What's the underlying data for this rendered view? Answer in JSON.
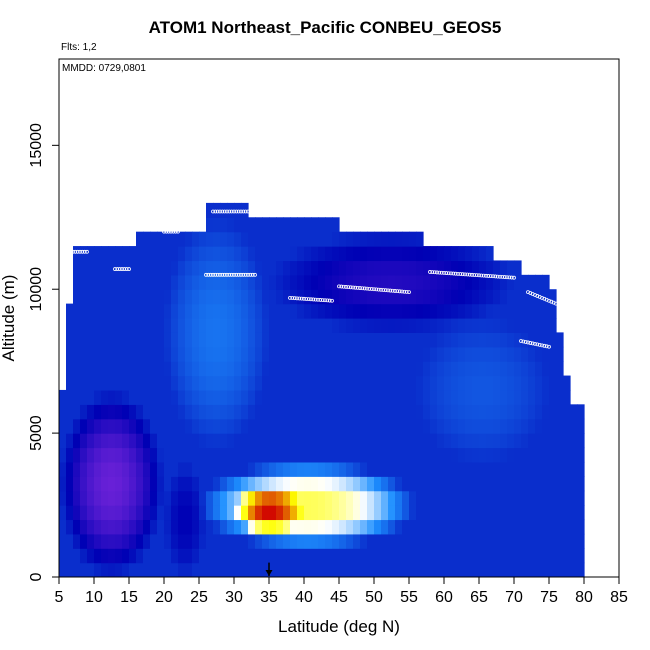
{
  "chart_data": {
    "type": "heatmap",
    "title": "ATOM1 Northeast_Pacific CONBEU_GEOS5",
    "flights_label": "Flts: 1,2",
    "date_label": "MMDD: 0729,0801",
    "xlabel": "Latitude (deg N)",
    "ylabel": "Altitude (m)",
    "xlim": [
      5,
      85
    ],
    "ylim": [
      0,
      18000
    ],
    "xticks": [
      5,
      10,
      15,
      20,
      25,
      30,
      35,
      40,
      45,
      50,
      55,
      60,
      65,
      70,
      75,
      80,
      85
    ],
    "yticks": [
      0,
      5000,
      10000,
      15000
    ],
    "grid": false,
    "arrow_marker_latitude": 35,
    "colors": {
      "low": "#8a2be2",
      "mid_low": "#0000b4",
      "mid": "#1e90ff",
      "mid_high": "#ffffff",
      "high": "#ffff00",
      "max": "#d00000",
      "track": "#ffffff"
    },
    "column_tops": [
      {
        "lat_start": 5,
        "lat_end": 6,
        "top": 6500
      },
      {
        "lat_start": 6,
        "lat_end": 7,
        "top": 9500
      },
      {
        "lat_start": 7,
        "lat_end": 13,
        "top": 11500
      },
      {
        "lat_start": 13,
        "lat_end": 16,
        "top": 11500
      },
      {
        "lat_start": 16,
        "lat_end": 26,
        "top": 12000
      },
      {
        "lat_start": 26,
        "lat_end": 32,
        "top": 13000
      },
      {
        "lat_start": 32,
        "lat_end": 45,
        "top": 12500
      },
      {
        "lat_start": 45,
        "lat_end": 57,
        "top": 12000
      },
      {
        "lat_start": 57,
        "lat_end": 67,
        "top": 11500
      },
      {
        "lat_start": 67,
        "lat_end": 71,
        "top": 11000
      },
      {
        "lat_start": 71,
        "lat_end": 75,
        "top": 10500
      },
      {
        "lat_start": 75,
        "lat_end": 76,
        "top": 10000
      },
      {
        "lat_start": 76,
        "lat_end": 77,
        "top": 8500
      },
      {
        "lat_start": 77,
        "lat_end": 78,
        "top": 7000
      },
      {
        "lat_start": 78,
        "lat_end": 80,
        "top": 6000
      }
    ],
    "features": [
      {
        "lat_start": 5,
        "lat_end": 20,
        "alt_start": 0,
        "alt_end": 6500,
        "level": 0.05
      },
      {
        "lat_start": 20,
        "lat_end": 26,
        "alt_start": 0,
        "alt_end": 4000,
        "level": 0.2
      },
      {
        "lat_start": 25,
        "lat_end": 56,
        "alt_start": 1000,
        "alt_end": 4000,
        "level": 0.75
      },
      {
        "lat_start": 30,
        "lat_end": 40,
        "alt_start": 1500,
        "alt_end": 3200,
        "level": 1.0
      },
      {
        "lat_start": 20,
        "lat_end": 35,
        "alt_start": 4500,
        "alt_end": 12500,
        "level": 0.4
      },
      {
        "lat_start": 56,
        "lat_end": 75,
        "alt_start": 4000,
        "alt_end": 9000,
        "level": 0.35
      },
      {
        "lat_start": 35,
        "lat_end": 70,
        "alt_start": 8500,
        "alt_end": 12000,
        "level": 0.15
      }
    ],
    "flight_tracks": [
      {
        "lat_start": 27,
        "lat_end": 32,
        "alt_start": 12700,
        "alt_end": 12700
      },
      {
        "lat_start": 26,
        "lat_end": 33,
        "alt_start": 10500,
        "alt_end": 10500
      },
      {
        "lat_start": 38,
        "lat_end": 44,
        "alt_start": 9700,
        "alt_end": 9600
      },
      {
        "lat_start": 45,
        "lat_end": 55,
        "alt_start": 10100,
        "alt_end": 9900
      },
      {
        "lat_start": 58,
        "lat_end": 70,
        "alt_start": 10600,
        "alt_end": 10400
      },
      {
        "lat_start": 72,
        "lat_end": 76,
        "alt_start": 9900,
        "alt_end": 9500
      },
      {
        "lat_start": 71,
        "lat_end": 75,
        "alt_start": 8200,
        "alt_end": 8000
      },
      {
        "lat_start": 7,
        "lat_end": 9,
        "alt_start": 11300,
        "alt_end": 11300
      },
      {
        "lat_start": 13,
        "lat_end": 15,
        "alt_start": 10700,
        "alt_end": 10700
      },
      {
        "lat_start": 20,
        "lat_end": 22,
        "alt_start": 12000,
        "alt_end": 12000
      }
    ]
  }
}
